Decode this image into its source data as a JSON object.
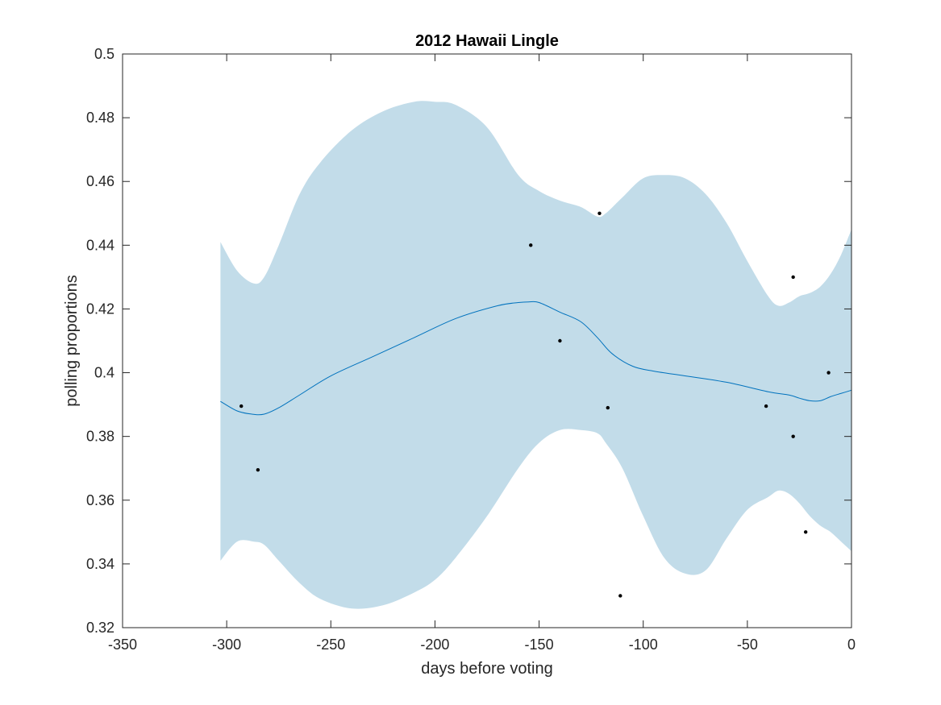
{
  "chart_data": {
    "type": "line",
    "title": "2012 Hawaii Lingle",
    "xlabel": "days before voting",
    "ylabel": "polling proportions",
    "xlim": [
      -350,
      0
    ],
    "ylim": [
      0.32,
      0.5
    ],
    "xticks": [
      -350,
      -300,
      -250,
      -200,
      -150,
      -100,
      -50,
      0
    ],
    "xtick_labels": [
      "-350",
      "-300",
      "-250",
      "-200",
      "-150",
      "-100",
      "-50",
      "0"
    ],
    "yticks": [
      0.32,
      0.34,
      0.36,
      0.38,
      0.4,
      0.42,
      0.44,
      0.46,
      0.48,
      0.5
    ],
    "ytick_labels": [
      "0.32",
      "0.34",
      "0.36",
      "0.38",
      "0.4",
      "0.42",
      "0.44",
      "0.46",
      "0.48",
      "0.5"
    ],
    "grid": false,
    "colors": {
      "band": "#c2dce9",
      "line": "#0072bd",
      "points": "#000000",
      "axes": "#262626"
    },
    "series": [
      {
        "type": "band",
        "x": [
          -303,
          -295,
          -287,
          -282,
          -275,
          -265,
          -255,
          -240,
          -225,
          -210,
          -200,
          -190,
          -175,
          -160,
          -150,
          -140,
          -130,
          -122,
          -118,
          -110,
          -100,
          -90,
          -80,
          -70,
          -60,
          -50,
          -40,
          -35,
          -30,
          -25,
          -20,
          -15,
          -10,
          -5,
          0
        ],
        "upper": [
          0.441,
          0.432,
          0.428,
          0.43,
          0.44,
          0.456,
          0.466,
          0.476,
          0.482,
          0.485,
          0.485,
          0.484,
          0.477,
          0.462,
          0.457,
          0.454,
          0.452,
          0.449,
          0.45,
          0.455,
          0.461,
          0.462,
          0.461,
          0.456,
          0.447,
          0.435,
          0.424,
          0.421,
          0.422,
          0.424,
          0.425,
          0.427,
          0.431,
          0.437,
          0.445
        ],
        "lower": [
          0.341,
          0.347,
          0.347,
          0.346,
          0.341,
          0.334,
          0.329,
          0.326,
          0.327,
          0.331,
          0.335,
          0.342,
          0.355,
          0.37,
          0.378,
          0.382,
          0.382,
          0.381,
          0.378,
          0.37,
          0.355,
          0.342,
          0.337,
          0.338,
          0.348,
          0.357,
          0.361,
          0.363,
          0.362,
          0.359,
          0.355,
          0.352,
          0.35,
          0.347,
          0.344
        ]
      },
      {
        "type": "line",
        "x": [
          -303,
          -295,
          -288,
          -282,
          -275,
          -265,
          -250,
          -230,
          -210,
          -190,
          -170,
          -160,
          -155,
          -150,
          -140,
          -130,
          -122,
          -115,
          -105,
          -95,
          -80,
          -60,
          -40,
          -30,
          -25,
          -20,
          -15,
          -10,
          -5,
          0
        ],
        "y": [
          0.391,
          0.388,
          0.387,
          0.387,
          0.389,
          0.393,
          0.399,
          0.405,
          0.411,
          0.417,
          0.421,
          0.422,
          0.4222,
          0.422,
          0.419,
          0.416,
          0.411,
          0.406,
          0.402,
          0.4005,
          0.399,
          0.397,
          0.394,
          0.393,
          0.392,
          0.3912,
          0.3912,
          0.3925,
          0.3935,
          0.3945
        ]
      },
      {
        "type": "scatter",
        "x": [
          -293,
          -285,
          -154,
          -140,
          -121,
          -117,
          -111,
          -41,
          -28,
          -28,
          -22,
          -11
        ],
        "y": [
          0.3895,
          0.3695,
          0.44,
          0.41,
          0.45,
          0.389,
          0.33,
          0.3895,
          0.43,
          0.38,
          0.35,
          0.4
        ]
      }
    ]
  }
}
